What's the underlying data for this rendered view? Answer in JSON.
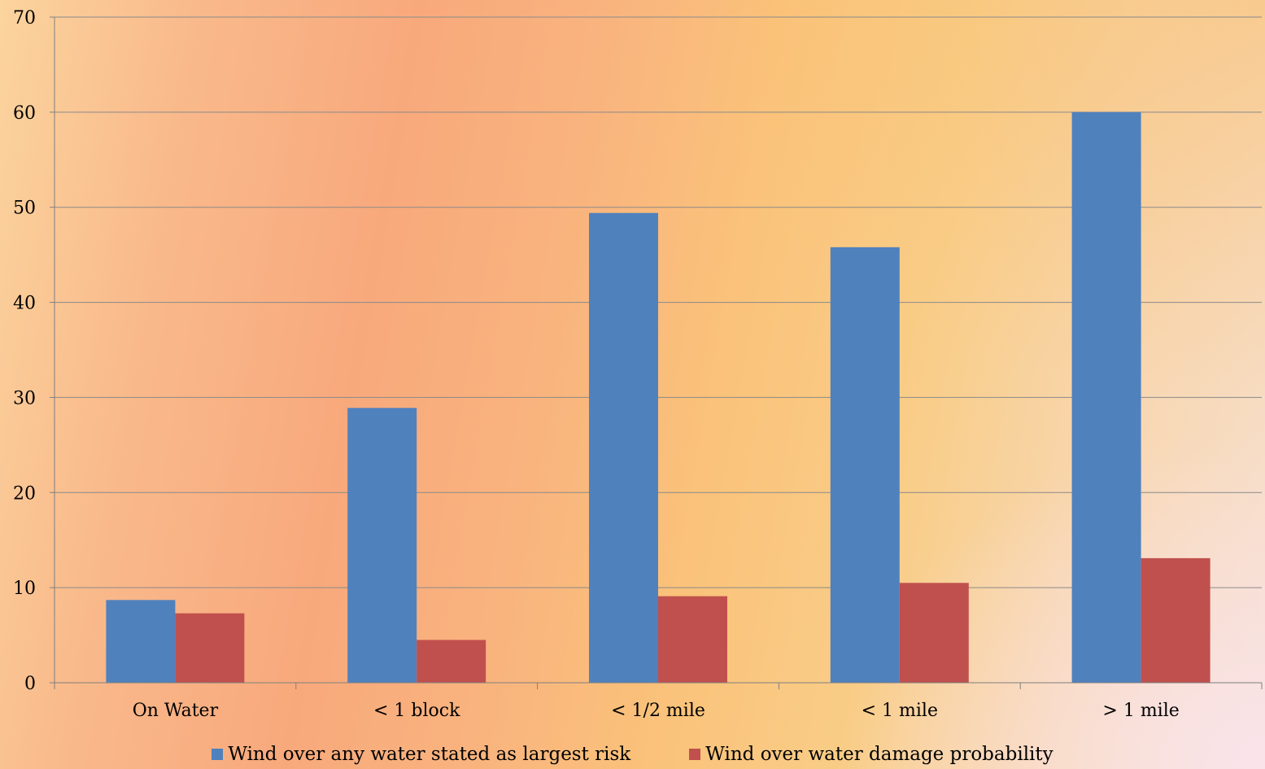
{
  "chart_data": {
    "type": "bar",
    "categories": [
      "On Water",
      "< 1 block",
      "< 1/2 mile",
      "< 1 mile",
      "> 1 mile"
    ],
    "series": [
      {
        "name": "Wind over any water stated as largest risk",
        "color": "#4f81bd",
        "values": [
          8.7,
          28.9,
          49.4,
          45.8,
          60.0
        ]
      },
      {
        "name": "Wind over water damage probability",
        "color": "#c0504d",
        "values": [
          7.3,
          4.5,
          9.1,
          10.5,
          13.1
        ]
      }
    ],
    "title": "",
    "xlabel": "",
    "ylabel": "",
    "ylim": [
      0,
      70
    ],
    "yticks": [
      0,
      10,
      20,
      30,
      40,
      50,
      60,
      70
    ],
    "grid": true,
    "legend_position": "bottom"
  }
}
